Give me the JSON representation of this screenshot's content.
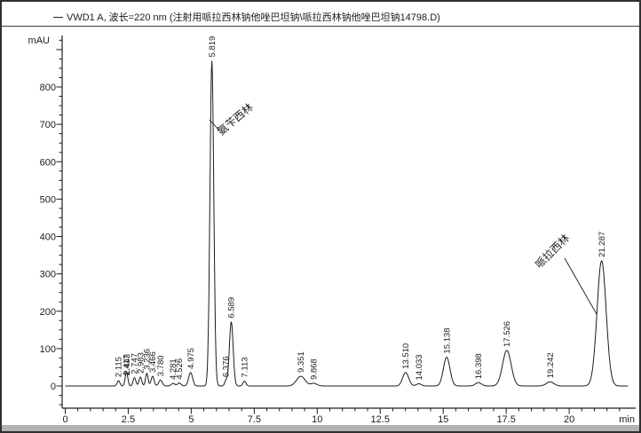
{
  "header": {
    "signal_title": "VWD1 A, 波长=220 nm (注射用哌拉西林钠他唑巴坦钠\\哌拉西林钠他唑巴坦钠14798.D)"
  },
  "chart_data": {
    "type": "line",
    "title": "VWD1 A, 波长=220 nm (注射用哌拉西林钠他唑巴坦钠\\哌拉西林钠他唑巴坦钠14798.D)",
    "xlabel": "min",
    "ylabel": "mAU",
    "xlim": [
      0,
      22.6
    ],
    "ylim": [
      -60,
      940
    ],
    "x_major_ticks": [
      0,
      2.5,
      5,
      7.5,
      10,
      12.5,
      15,
      17.5,
      20
    ],
    "x_minor_step": 0.5,
    "y_major_ticks": [
      0,
      100,
      200,
      300,
      400,
      500,
      600,
      700,
      800
    ],
    "y_unlabeled_major_ticks": [
      900
    ],
    "y_minor_step": 25,
    "grid": false,
    "legend_position": "none",
    "line_color": "#1c1c1c",
    "background": "#ffffff",
    "peaks": [
      {
        "label": "2.115",
        "rt": 2.115,
        "height_mau": 14,
        "sigma_min": 0.055
      },
      {
        "label": "2.417",
        "rt": 2.417,
        "height_mau": 18,
        "sigma_min": 0.05
      },
      {
        "label": "2.443",
        "rt": 2.443,
        "height_mau": 20,
        "sigma_min": 0.05
      },
      {
        "label": "2.747",
        "rt": 2.747,
        "height_mau": 22,
        "sigma_min": 0.055
      },
      {
        "label": "2.983",
        "rt": 2.983,
        "height_mau": 24,
        "sigma_min": 0.055
      },
      {
        "label": "3.236",
        "rt": 3.236,
        "height_mau": 34,
        "sigma_min": 0.05
      },
      {
        "label": "3.466",
        "rt": 3.466,
        "height_mau": 26,
        "sigma_min": 0.06
      },
      {
        "label": "3.780",
        "rt": 3.78,
        "height_mau": 16,
        "sigma_min": 0.07
      },
      {
        "label": "4.281",
        "rt": 4.281,
        "height_mau": 7,
        "sigma_min": 0.07
      },
      {
        "label": "4.526",
        "rt": 4.526,
        "height_mau": 8,
        "sigma_min": 0.07
      },
      {
        "label": "4.975",
        "rt": 4.975,
        "height_mau": 36,
        "sigma_min": 0.08
      },
      {
        "label": "5.819",
        "rt": 5.819,
        "height_mau": 870,
        "sigma_min": 0.075
      },
      {
        "label": "6.376",
        "rt": 6.376,
        "height_mau": 14,
        "sigma_min": 0.05
      },
      {
        "label": "6.589",
        "rt": 6.589,
        "height_mau": 172,
        "sigma_min": 0.075
      },
      {
        "label": "7.113",
        "rt": 7.113,
        "height_mau": 13,
        "sigma_min": 0.06
      },
      {
        "label": "9.351",
        "rt": 9.351,
        "height_mau": 26,
        "sigma_min": 0.17
      },
      {
        "label": "9.868",
        "rt": 9.868,
        "height_mau": 7,
        "sigma_min": 0.12
      },
      {
        "label": "13.510",
        "rt": 13.51,
        "height_mau": 36,
        "sigma_min": 0.12
      },
      {
        "label": "14.033",
        "rt": 14.033,
        "height_mau": 6,
        "sigma_min": 0.1
      },
      {
        "label": "15.138",
        "rt": 15.138,
        "height_mau": 77,
        "sigma_min": 0.13
      },
      {
        "label": "16.398",
        "rt": 16.398,
        "height_mau": 9,
        "sigma_min": 0.12
      },
      {
        "label": "17.526",
        "rt": 17.526,
        "height_mau": 95,
        "sigma_min": 0.17
      },
      {
        "label": "19.242",
        "rt": 19.242,
        "height_mau": 11,
        "sigma_min": 0.15
      },
      {
        "label": "21.287",
        "rt": 21.287,
        "height_mau": 335,
        "sigma_min": 0.18
      }
    ],
    "annotations": [
      {
        "text": "氨苄西林",
        "peak_rt": 5.819
      },
      {
        "text": "哌拉西林",
        "peak_rt": 21.287
      }
    ]
  }
}
